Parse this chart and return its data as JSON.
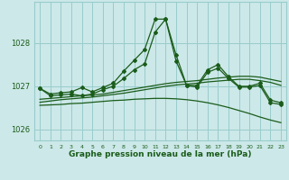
{
  "bg_color": "#cce8e8",
  "grid_color": "#99cccc",
  "line_color": "#1a5c1a",
  "xlabel": "Graphe pression niveau de la mer (hPa)",
  "hours": [
    0,
    1,
    2,
    3,
    4,
    5,
    6,
    7,
    8,
    9,
    10,
    11,
    12,
    13,
    14,
    15,
    16,
    17,
    18,
    19,
    20,
    21,
    22,
    23
  ],
  "series1": [
    1026.95,
    1026.82,
    1026.85,
    1026.87,
    1026.97,
    1026.87,
    1026.97,
    1027.07,
    1027.35,
    1027.6,
    1027.85,
    1028.55,
    1028.55,
    1027.72,
    1027.02,
    1027.02,
    1027.38,
    1027.5,
    1027.22,
    1027.0,
    1027.0,
    1027.07,
    1026.68,
    1026.62
  ],
  "series2": [
    1026.95,
    1026.78,
    1026.8,
    1026.82,
    1026.78,
    1026.82,
    1026.92,
    1027.0,
    1027.18,
    1027.38,
    1027.52,
    1028.25,
    1028.55,
    1027.58,
    1027.02,
    1026.98,
    1027.32,
    1027.42,
    1027.18,
    1026.98,
    1026.98,
    1027.02,
    1026.62,
    1026.58
  ],
  "trend1": [
    1026.7,
    1026.72,
    1026.74,
    1026.76,
    1026.78,
    1026.8,
    1026.82,
    1026.86,
    1026.9,
    1026.94,
    1026.98,
    1027.02,
    1027.06,
    1027.09,
    1027.11,
    1027.13,
    1027.16,
    1027.19,
    1027.21,
    1027.23,
    1027.23,
    1027.21,
    1027.16,
    1027.11
  ],
  "trend2": [
    1026.63,
    1026.66,
    1026.69,
    1026.71,
    1026.73,
    1026.75,
    1026.78,
    1026.81,
    1026.84,
    1026.88,
    1026.92,
    1026.96,
    1027.0,
    1027.03,
    1027.05,
    1027.07,
    1027.1,
    1027.12,
    1027.14,
    1027.16,
    1027.16,
    1027.13,
    1027.09,
    1027.02
  ],
  "smooth": [
    1026.56,
    1026.57,
    1026.58,
    1026.6,
    1026.61,
    1026.63,
    1026.65,
    1026.67,
    1026.68,
    1026.7,
    1026.71,
    1026.72,
    1026.72,
    1026.71,
    1026.69,
    1026.66,
    1026.62,
    1026.57,
    1026.51,
    1026.44,
    1026.37,
    1026.29,
    1026.22,
    1026.16
  ],
  "ylim": [
    1025.75,
    1028.95
  ],
  "yticks": [
    1026,
    1027,
    1028
  ],
  "xticks": [
    0,
    1,
    2,
    3,
    4,
    5,
    6,
    7,
    8,
    9,
    10,
    11,
    12,
    13,
    14,
    15,
    16,
    17,
    18,
    19,
    20,
    21,
    22,
    23
  ]
}
